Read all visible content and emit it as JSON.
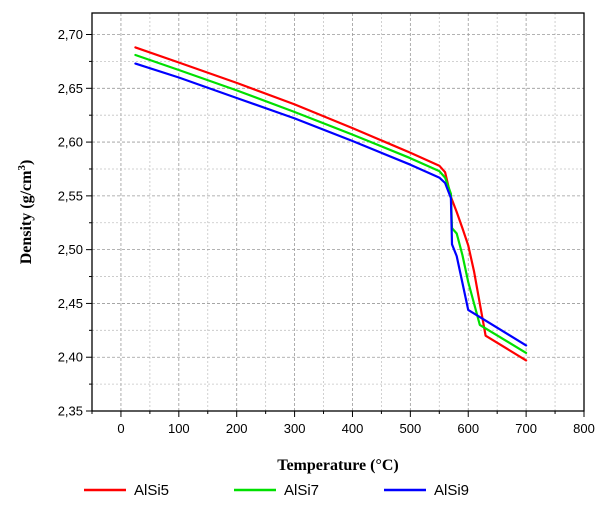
{
  "chart_data": {
    "type": "line",
    "title": "",
    "xlabel": "Temperature (°C)",
    "ylabel_main": "Density (g/cm",
    "ylabel_sup": "3",
    "ylabel_close": ")",
    "xlim": [
      -50,
      800
    ],
    "ylim": [
      2.35,
      2.72
    ],
    "xticks": [
      0,
      100,
      200,
      300,
      400,
      500,
      600,
      700,
      800
    ],
    "xtick_labels": [
      "0",
      "100",
      "200",
      "300",
      "400",
      "500",
      "600",
      "700",
      "800"
    ],
    "yticks": [
      2.35,
      2.4,
      2.45,
      2.5,
      2.55,
      2.6,
      2.65,
      2.7
    ],
    "ytick_labels": [
      "2,35",
      "2,40",
      "2,45",
      "2,50",
      "2,55",
      "2,60",
      "2,65",
      "2,70"
    ],
    "grid": true,
    "legend_position": "bottom",
    "series": [
      {
        "name": "AlSi5",
        "color": "#ff0000",
        "x": [
          25,
          100,
          200,
          300,
          400,
          500,
          550,
          560,
          570,
          580,
          590,
          600,
          610,
          620,
          630,
          700
        ],
        "y": [
          2.688,
          2.674,
          2.655,
          2.635,
          2.613,
          2.59,
          2.578,
          2.572,
          2.549,
          2.535,
          2.52,
          2.504,
          2.48,
          2.45,
          2.42,
          2.397
        ]
      },
      {
        "name": "AlSi7",
        "color": "#00e000",
        "x": [
          25,
          100,
          200,
          300,
          400,
          500,
          550,
          560,
          570,
          572,
          580,
          590,
          600,
          610,
          620,
          700
        ],
        "y": [
          2.681,
          2.667,
          2.648,
          2.628,
          2.607,
          2.585,
          2.573,
          2.567,
          2.552,
          2.52,
          2.515,
          2.495,
          2.47,
          2.45,
          2.43,
          2.404
        ]
      },
      {
        "name": "AlSi9",
        "color": "#0000ff",
        "x": [
          25,
          100,
          200,
          300,
          400,
          500,
          550,
          560,
          570,
          572,
          580,
          600,
          700
        ],
        "y": [
          2.673,
          2.66,
          2.641,
          2.622,
          2.601,
          2.579,
          2.567,
          2.562,
          2.548,
          2.505,
          2.494,
          2.444,
          2.411
        ]
      }
    ]
  }
}
